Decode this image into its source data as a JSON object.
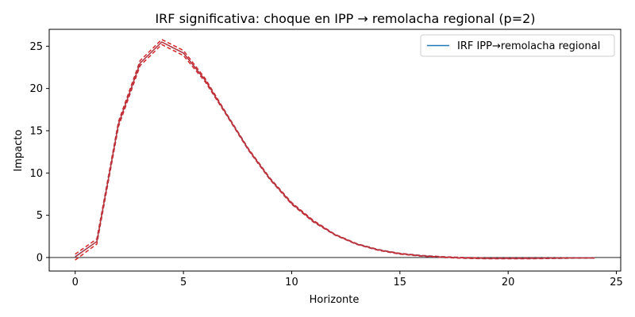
{
  "chart_data": {
    "type": "line",
    "title": "IRF significativa: choque en IPP → remolacha regional (p=2)",
    "xlabel": "Horizonte",
    "ylabel": "Impacto",
    "xlim": [
      -1.2,
      25.2
    ],
    "ylim": [
      -1.6,
      27.0
    ],
    "xticks": [
      0,
      5,
      10,
      15,
      20,
      25
    ],
    "yticks": [
      0,
      5,
      10,
      15,
      20,
      25
    ],
    "grid": false,
    "zero_line": true,
    "legend_position": "top-right",
    "x": [
      0,
      1,
      2,
      3,
      4,
      5,
      6,
      7,
      8,
      9,
      10,
      11,
      12,
      13,
      14,
      15,
      16,
      17,
      18,
      19,
      20,
      21,
      22,
      23,
      24
    ],
    "series": [
      {
        "name": "IRF IPP→remolacha regional",
        "color": "#1f77b4",
        "values": [
          0.1,
          1.9,
          15.8,
          23.0,
          25.5,
          24.2,
          21.0,
          16.9,
          12.8,
          9.3,
          6.4,
          4.3,
          2.7,
          1.6,
          0.9,
          0.45,
          0.2,
          0.05,
          -0.05,
          -0.1,
          -0.1,
          -0.1,
          -0.08,
          -0.05,
          -0.05
        ]
      }
    ],
    "bands": [
      {
        "style": "dashed",
        "color": "#d62728",
        "lower": [
          -0.3,
          1.6,
          15.5,
          22.7,
          25.2,
          23.9,
          20.8,
          16.8,
          12.7,
          9.2,
          6.3,
          4.2,
          2.65,
          1.55,
          0.85,
          0.4,
          0.15,
          0.0,
          -0.1,
          -0.15,
          -0.15,
          -0.15,
          -0.12,
          -0.08,
          -0.08
        ],
        "upper": [
          0.4,
          2.2,
          16.1,
          23.3,
          25.8,
          24.5,
          21.2,
          17.0,
          12.9,
          9.4,
          6.5,
          4.4,
          2.75,
          1.65,
          0.95,
          0.5,
          0.25,
          0.1,
          0.0,
          -0.05,
          -0.05,
          -0.05,
          -0.04,
          -0.02,
          -0.02
        ]
      }
    ]
  }
}
